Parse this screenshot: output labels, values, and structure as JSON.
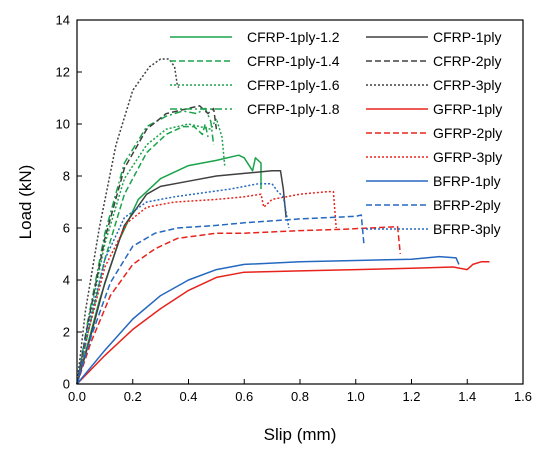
{
  "chart_data": {
    "type": "line",
    "title": "",
    "xlabel": "Slip (mm)",
    "ylabel": "Load (kN)",
    "xlim": [
      0,
      1.6
    ],
    "ylim": [
      0,
      14
    ],
    "xticks": [
      "0.0",
      "0.2",
      "0.4",
      "0.6",
      "0.8",
      "1.0",
      "1.2",
      "1.4",
      "1.6"
    ],
    "yticks": [
      "0",
      "2",
      "4",
      "6",
      "8",
      "10",
      "12",
      "14"
    ],
    "grid": false,
    "legend_position": "top-right",
    "series": [
      {
        "name": "CFRP-1ply-1.2",
        "color": "#1aa34a",
        "dash": "solid",
        "points": [
          [
            0,
            0
          ],
          [
            0.03,
            1.2
          ],
          [
            0.08,
            3.2
          ],
          [
            0.15,
            5.5
          ],
          [
            0.22,
            7.1
          ],
          [
            0.3,
            7.9
          ],
          [
            0.4,
            8.4
          ],
          [
            0.5,
            8.6
          ],
          [
            0.58,
            8.8
          ],
          [
            0.6,
            8.7
          ],
          [
            0.63,
            8.2
          ],
          [
            0.64,
            8.7
          ],
          [
            0.66,
            8.5
          ],
          [
            0.66,
            7.5
          ]
        ]
      },
      {
        "name": "CFRP-1ply-1.4",
        "color": "#1aa34a",
        "dash": "dash",
        "points": [
          [
            0,
            0
          ],
          [
            0.04,
            2.0
          ],
          [
            0.1,
            4.8
          ],
          [
            0.17,
            7.3
          ],
          [
            0.25,
            8.9
          ],
          [
            0.32,
            9.6
          ],
          [
            0.38,
            9.9
          ],
          [
            0.42,
            9.9
          ],
          [
            0.45,
            9.6
          ],
          [
            0.46,
            10.0
          ],
          [
            0.47,
            9.5
          ]
        ]
      },
      {
        "name": "CFRP-1ply-1.6",
        "color": "#1aa34a",
        "dash": "dot",
        "points": [
          [
            0,
            0
          ],
          [
            0.04,
            2.3
          ],
          [
            0.1,
            5.4
          ],
          [
            0.17,
            7.9
          ],
          [
            0.25,
            9.2
          ],
          [
            0.32,
            9.8
          ],
          [
            0.4,
            10.0
          ],
          [
            0.48,
            9.8
          ],
          [
            0.5,
            10.2
          ],
          [
            0.52,
            9.5
          ],
          [
            0.53,
            8.4
          ]
        ]
      },
      {
        "name": "CFRP-1ply-1.8",
        "color": "#1aa34a",
        "dash": "dashdot",
        "points": [
          [
            0,
            0
          ],
          [
            0.04,
            2.5
          ],
          [
            0.1,
            5.8
          ],
          [
            0.17,
            8.5
          ],
          [
            0.25,
            9.9
          ],
          [
            0.32,
            10.3
          ],
          [
            0.38,
            10.5
          ],
          [
            0.43,
            10.4
          ],
          [
            0.46,
            10.6
          ],
          [
            0.48,
            10.1
          ],
          [
            0.49,
            9.2
          ]
        ]
      },
      {
        "name": "CFRP-1ply",
        "color": "#404040",
        "dash": "solid",
        "points": [
          [
            0,
            0
          ],
          [
            0.04,
            1.5
          ],
          [
            0.1,
            3.9
          ],
          [
            0.17,
            6.1
          ],
          [
            0.25,
            7.3
          ],
          [
            0.3,
            7.6
          ],
          [
            0.4,
            7.8
          ],
          [
            0.5,
            8.0
          ],
          [
            0.6,
            8.1
          ],
          [
            0.7,
            8.2
          ],
          [
            0.73,
            8.2
          ],
          [
            0.74,
            7.5
          ],
          [
            0.75,
            6.4
          ]
        ]
      },
      {
        "name": "CFRP-2ply",
        "color": "#404040",
        "dash": "dash",
        "points": [
          [
            0,
            0
          ],
          [
            0.04,
            2.4
          ],
          [
            0.1,
            5.6
          ],
          [
            0.17,
            8.3
          ],
          [
            0.25,
            9.8
          ],
          [
            0.32,
            10.4
          ],
          [
            0.4,
            10.6
          ],
          [
            0.44,
            10.7
          ],
          [
            0.47,
            10.4
          ],
          [
            0.49,
            10.6
          ],
          [
            0.5,
            9.8
          ]
        ]
      },
      {
        "name": "CFRP-3ply",
        "color": "#404040",
        "dash": "dot",
        "points": [
          [
            0,
            0
          ],
          [
            0.03,
            2.8
          ],
          [
            0.08,
            6.0
          ],
          [
            0.14,
            9.2
          ],
          [
            0.2,
            11.3
          ],
          [
            0.26,
            12.2
          ],
          [
            0.3,
            12.5
          ],
          [
            0.33,
            12.5
          ],
          [
            0.35,
            12.2
          ],
          [
            0.36,
            11.5
          ],
          [
            0.365,
            11.4
          ]
        ]
      },
      {
        "name": "GFRP-1ply",
        "color": "#e8231c",
        "dash": "solid",
        "points": [
          [
            0,
            0
          ],
          [
            0.1,
            1.1
          ],
          [
            0.2,
            2.1
          ],
          [
            0.3,
            2.9
          ],
          [
            0.4,
            3.6
          ],
          [
            0.5,
            4.1
          ],
          [
            0.6,
            4.3
          ],
          [
            0.8,
            4.35
          ],
          [
            1.0,
            4.4
          ],
          [
            1.2,
            4.45
          ],
          [
            1.35,
            4.5
          ],
          [
            1.4,
            4.4
          ],
          [
            1.42,
            4.6
          ],
          [
            1.45,
            4.7
          ],
          [
            1.48,
            4.7
          ]
        ]
      },
      {
        "name": "GFRP-2ply",
        "color": "#e8231c",
        "dash": "dash",
        "points": [
          [
            0,
            0
          ],
          [
            0.05,
            1.6
          ],
          [
            0.12,
            3.4
          ],
          [
            0.2,
            4.6
          ],
          [
            0.28,
            5.2
          ],
          [
            0.36,
            5.6
          ],
          [
            0.5,
            5.8
          ],
          [
            0.6,
            5.8
          ],
          [
            0.8,
            5.9
          ],
          [
            0.95,
            5.95
          ],
          [
            1.05,
            6.0
          ],
          [
            1.15,
            6.05
          ],
          [
            1.16,
            5.0
          ]
        ]
      },
      {
        "name": "GFRP-3ply",
        "color": "#e8231c",
        "dash": "dot",
        "points": [
          [
            0,
            0
          ],
          [
            0.04,
            2.0
          ],
          [
            0.1,
            4.5
          ],
          [
            0.18,
            6.2
          ],
          [
            0.25,
            6.8
          ],
          [
            0.35,
            7.0
          ],
          [
            0.5,
            7.1
          ],
          [
            0.6,
            7.2
          ],
          [
            0.66,
            7.3
          ],
          [
            0.67,
            6.8
          ],
          [
            0.7,
            7.1
          ],
          [
            0.8,
            7.3
          ],
          [
            0.9,
            7.4
          ],
          [
            0.92,
            7.4
          ],
          [
            0.93,
            6.0
          ]
        ]
      },
      {
        "name": "BFRP-1ply",
        "color": "#2468c0",
        "dash": "solid",
        "points": [
          [
            0,
            0
          ],
          [
            0.1,
            1.3
          ],
          [
            0.2,
            2.5
          ],
          [
            0.3,
            3.4
          ],
          [
            0.4,
            4.0
          ],
          [
            0.5,
            4.4
          ],
          [
            0.6,
            4.6
          ],
          [
            0.8,
            4.7
          ],
          [
            1.0,
            4.75
          ],
          [
            1.2,
            4.8
          ],
          [
            1.3,
            4.9
          ],
          [
            1.36,
            4.85
          ],
          [
            1.37,
            4.6
          ]
        ]
      },
      {
        "name": "BFRP-2ply",
        "color": "#2468c0",
        "dash": "dash",
        "points": [
          [
            0,
            0
          ],
          [
            0.05,
            1.8
          ],
          [
            0.12,
            3.9
          ],
          [
            0.2,
            5.3
          ],
          [
            0.28,
            5.8
          ],
          [
            0.36,
            6.0
          ],
          [
            0.5,
            6.1
          ],
          [
            0.6,
            6.2
          ],
          [
            0.8,
            6.35
          ],
          [
            0.9,
            6.4
          ],
          [
            1.0,
            6.45
          ],
          [
            1.02,
            6.5
          ],
          [
            1.03,
            5.3
          ]
        ]
      },
      {
        "name": "BFRP-3ply",
        "color": "#2468c0",
        "dash": "dot",
        "points": [
          [
            0,
            0
          ],
          [
            0.04,
            2.2
          ],
          [
            0.1,
            4.8
          ],
          [
            0.17,
            6.4
          ],
          [
            0.25,
            7.0
          ],
          [
            0.35,
            7.2
          ],
          [
            0.45,
            7.35
          ],
          [
            0.55,
            7.5
          ],
          [
            0.65,
            7.7
          ],
          [
            0.7,
            7.7
          ],
          [
            0.72,
            7.4
          ],
          [
            0.74,
            7.2
          ],
          [
            0.76,
            6.0
          ]
        ]
      }
    ]
  }
}
